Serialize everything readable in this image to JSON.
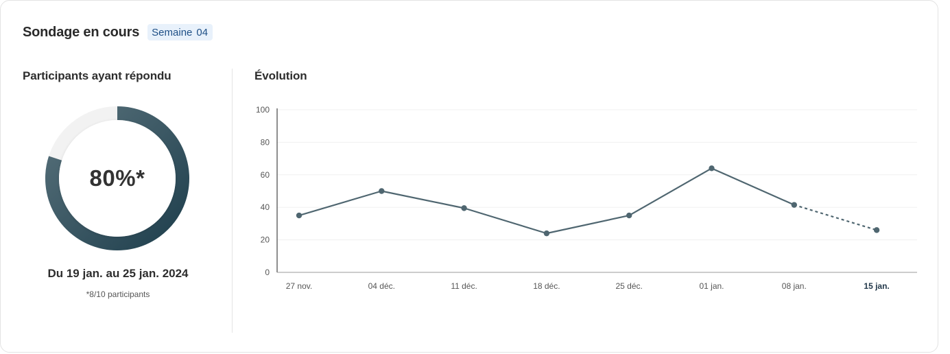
{
  "header": {
    "title": "Sondage en cours",
    "badge_label": "Semaine",
    "badge_number": "04"
  },
  "participation": {
    "section_title": "Participants ayant répondu",
    "percent_label": "80%*",
    "percent": 0.8,
    "date_range": "Du 19 jan. au 25 jan. 2024",
    "note": "*8/10 participants",
    "colors": {
      "fill_start": "#58717b",
      "fill_end": "#1f3f4d",
      "track": "#f2f2f2"
    }
  },
  "evolution": {
    "section_title": "Évolution"
  },
  "chart_data": {
    "type": "line",
    "title": "",
    "xlabel": "",
    "ylabel": "",
    "categories": [
      "27 nov.",
      "04 déc.",
      "11 déc.",
      "18 déc.",
      "25 déc.",
      "01 jan.",
      "08 jan.",
      "15 jan."
    ],
    "series": [
      {
        "values": [
          35,
          50,
          39.5,
          24,
          35,
          64,
          41.5,
          26
        ]
      }
    ],
    "ylim": [
      0,
      100
    ],
    "yticks": [
      0,
      20,
      40,
      60,
      80,
      100
    ],
    "highlighted_category": "15 jan.",
    "dashed_last_segment": true,
    "grid": true,
    "color": "#4f6670"
  }
}
